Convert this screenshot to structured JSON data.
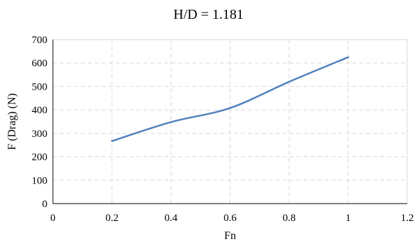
{
  "chart_data": {
    "type": "line",
    "title": "H/D = 1.181",
    "xlabel": "Fn",
    "ylabel": "F (Drag) (N)",
    "xlim": [
      0,
      1.2
    ],
    "ylim": [
      0,
      700
    ],
    "x_ticks": [
      0,
      0.2,
      0.4,
      0.6,
      0.8,
      1,
      1.2
    ],
    "x_tick_labels": [
      "0",
      "0.2",
      "0.4",
      "0.6",
      "0.8",
      "1",
      "1.2"
    ],
    "y_ticks": [
      0,
      100,
      200,
      300,
      400,
      500,
      600,
      700
    ],
    "y_tick_labels": [
      "0",
      "100",
      "200",
      "300",
      "400",
      "500",
      "600",
      "700"
    ],
    "grid": true,
    "grid_style": "dashed",
    "legend": "none",
    "smoothed": true,
    "series": [
      {
        "color": "#4f81bd",
        "x": [
          0.2,
          0.4,
          0.6,
          0.8,
          1.0
        ],
        "y": [
          267,
          348,
          408,
          520,
          625
        ]
      }
    ]
  }
}
